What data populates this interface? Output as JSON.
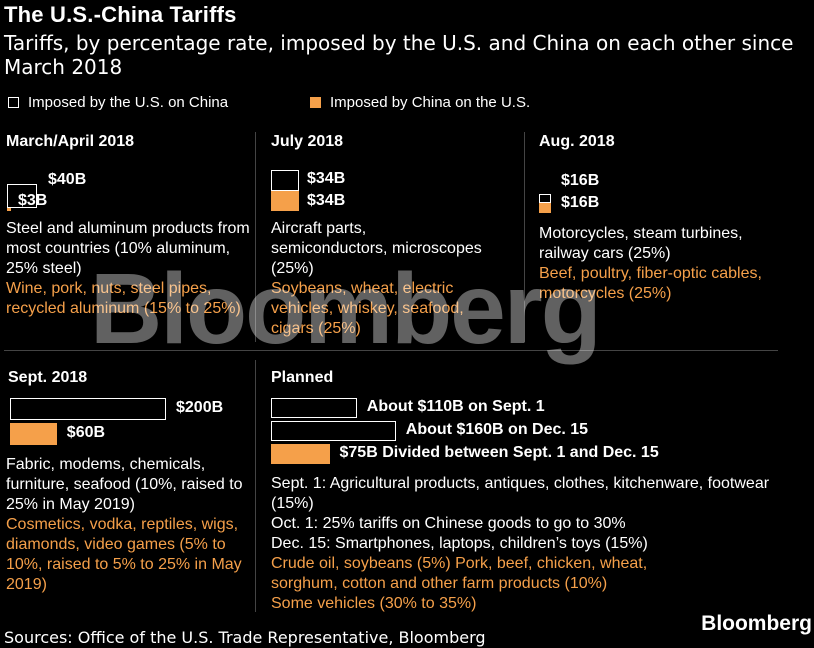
{
  "title": "The U.S.-China Tariffs",
  "subtitle": "Tariffs, by percentage rate, imposed by the U.S. and China on each other since March 2018",
  "legend": {
    "us": "Imposed by the U.S. on China",
    "china": "Imposed by China on the U.S."
  },
  "colors": {
    "us_fill": "#000000",
    "us_border": "#ffffff",
    "china": "#f5a04a"
  },
  "chart_data": {
    "type": "bar",
    "unit": "billions USD",
    "panels": [
      {
        "title": "March/April 2018",
        "bars": [
          {
            "series": "us",
            "value": 40,
            "label": "$40B"
          },
          {
            "series": "china",
            "value": 3,
            "label": "$3B"
          }
        ],
        "us_text": "Steel and aluminum products from most countries (10% aluminum, 25% steel)",
        "china_text": "Wine, pork, nuts, steel pipes, recycled aluminum (15% to 25%)"
      },
      {
        "title": "July 2018",
        "bars": [
          {
            "series": "us",
            "value": 34,
            "label": "$34B"
          },
          {
            "series": "china",
            "value": 34,
            "label": "$34B"
          }
        ],
        "us_text": "Aircraft parts, semiconductors, microscopes (25%)",
        "china_text": "Soybeans, wheat, electric vehicles, whiskey, seafood, cigars (25%)"
      },
      {
        "title": "Aug. 2018",
        "bars": [
          {
            "series": "us",
            "value": 16,
            "label": "$16B"
          },
          {
            "series": "china",
            "value": 16,
            "label": "$16B"
          }
        ],
        "us_text": "Motorcycles, steam turbines, railway cars (25%)",
        "china_text": "Beef, poultry, fiber-optic cables, motorcycles (25%)"
      },
      {
        "title": "Sept. 2018",
        "bars": [
          {
            "series": "us",
            "value": 200,
            "label": "$200B"
          },
          {
            "series": "china",
            "value": 60,
            "label": "$60B"
          }
        ],
        "us_text": "Fabric, modems, chemicals, furniture, seafood (10%, raised to 25% in May 2019)",
        "china_text": "Cosmetics, vodka, reptiles, wigs, diamonds, video games (5% to 10%, raised to 5% to 25% in May 2019)"
      },
      {
        "title": "Planned",
        "bars": [
          {
            "series": "us",
            "value": 110,
            "label": "About $110B on Sept. 1"
          },
          {
            "series": "us",
            "value": 160,
            "label": "About $160B on Dec. 15"
          },
          {
            "series": "china",
            "value": 75,
            "label": "$75B Divided between Sept. 1 and Dec. 15"
          }
        ],
        "us_text": "Sept. 1: Agricultural products, antiques, clothes, kitchenware, footwear (15%)\nOct. 1: 25% tariffs on Chinese goods to go to 30%\nDec. 15: Smartphones, laptops, children’s toys (15%)",
        "china_text": "Crude oil, soybeans (5%) Pork, beef, chicken, wheat, sorghum, cotton and other farm products (10%)\nSome vehicles (30% to 35%)"
      }
    ]
  },
  "watermark": "Bloomberg",
  "source": "Sources: Office of the U.S. Trade Representative, Bloomberg",
  "logo": "Bloomberg"
}
